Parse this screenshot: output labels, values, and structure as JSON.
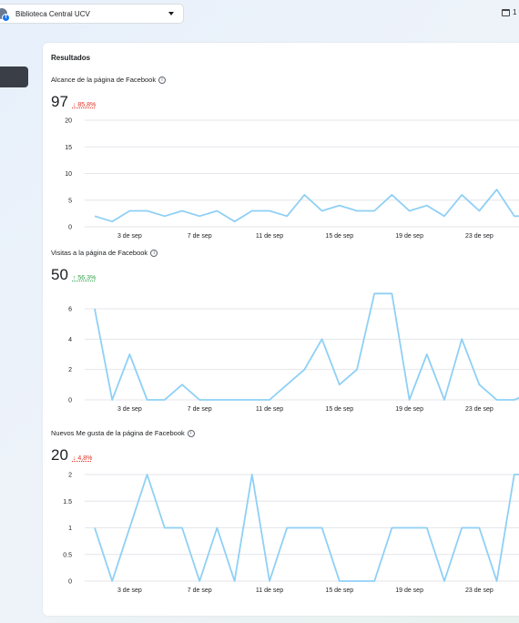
{
  "topbar": {
    "page_selector": "Biblioteca Central UCV",
    "date_range_partial": "1"
  },
  "card": {
    "title": "Resultados"
  },
  "metrics": [
    {
      "label": "Alcance de la página de Facebook",
      "value": "97",
      "delta": "85,8%",
      "direction": "down"
    },
    {
      "label": "Visitas a la página de Facebook",
      "value": "50",
      "delta": "56,3%",
      "direction": "up"
    },
    {
      "label": "Nuevos Me gusta de la página de Facebook",
      "value": "20",
      "delta": "4,8%",
      "direction": "down"
    }
  ],
  "colors": {
    "line": "#8fd0f5",
    "down": "#e0301e",
    "up": "#31a24c",
    "grid": "#e4e6eb"
  },
  "chart_data": [
    {
      "type": "line",
      "x": [
        "1 de sep",
        "2 de sep",
        "3 de sep",
        "4 de sep",
        "5 de sep",
        "6 de sep",
        "7 de sep",
        "8 de sep",
        "9 de sep",
        "10 de sep",
        "11 de sep",
        "12 de sep",
        "13 de sep",
        "14 de sep",
        "15 de sep",
        "16 de sep",
        "17 de sep",
        "18 de sep",
        "19 de sep",
        "20 de sep",
        "21 de sep",
        "22 de sep",
        "23 de sep",
        "24 de sep",
        "25 de sep",
        "26 de sep"
      ],
      "series": [
        {
          "values": [
            2,
            1,
            3,
            3,
            2,
            3,
            2,
            3,
            1,
            3,
            3,
            2,
            6,
            3,
            4,
            3,
            3,
            6,
            3,
            4,
            2,
            6,
            3,
            7,
            2,
            2
          ]
        }
      ],
      "xticks": [
        "3 de sep",
        "7 de sep",
        "11 de sep",
        "15 de sep",
        "19 de sep",
        "23 de sep"
      ],
      "yticks": [
        0,
        5,
        10,
        15,
        20
      ],
      "ylim": [
        0,
        20
      ]
    },
    {
      "type": "line",
      "x": [
        "1 de sep",
        "2 de sep",
        "3 de sep",
        "4 de sep",
        "5 de sep",
        "6 de sep",
        "7 de sep",
        "8 de sep",
        "9 de sep",
        "10 de sep",
        "11 de sep",
        "12 de sep",
        "13 de sep",
        "14 de sep",
        "15 de sep",
        "16 de sep",
        "17 de sep",
        "18 de sep",
        "19 de sep",
        "20 de sep",
        "21 de sep",
        "22 de sep",
        "23 de sep",
        "24 de sep",
        "25 de sep",
        "26 de sep"
      ],
      "series": [
        {
          "values": [
            6,
            0,
            3,
            0,
            0,
            1,
            0,
            0,
            0,
            0,
            0,
            1,
            2,
            4,
            1,
            2,
            7,
            7,
            0,
            3,
            0,
            4,
            1,
            0,
            0,
            0.5
          ]
        }
      ],
      "xticks": [
        "3 de sep",
        "7 de sep",
        "11 de sep",
        "15 de sep",
        "19 de sep",
        "23 de sep"
      ],
      "yticks": [
        0,
        2,
        4,
        6
      ],
      "ylim": [
        0,
        6
      ]
    },
    {
      "type": "line",
      "x": [
        "1 de sep",
        "2 de sep",
        "3 de sep",
        "4 de sep",
        "5 de sep",
        "6 de sep",
        "7 de sep",
        "8 de sep",
        "9 de sep",
        "10 de sep",
        "11 de sep",
        "12 de sep",
        "13 de sep",
        "14 de sep",
        "15 de sep",
        "16 de sep",
        "17 de sep",
        "18 de sep",
        "19 de sep",
        "20 de sep",
        "21 de sep",
        "22 de sep",
        "23 de sep",
        "24 de sep",
        "25 de sep",
        "26 de sep"
      ],
      "series": [
        {
          "values": [
            1,
            0,
            1,
            2,
            1,
            1,
            0,
            1,
            0,
            2,
            0,
            1,
            1,
            1,
            0,
            0,
            0,
            1,
            1,
            1,
            0,
            1,
            1,
            0,
            2,
            2
          ]
        }
      ],
      "xticks": [
        "3 de sep",
        "7 de sep",
        "11 de sep",
        "15 de sep",
        "19 de sep",
        "23 de sep"
      ],
      "yticks": [
        0,
        0.5,
        1,
        1.5,
        2
      ],
      "ylim": [
        0,
        2
      ]
    }
  ]
}
